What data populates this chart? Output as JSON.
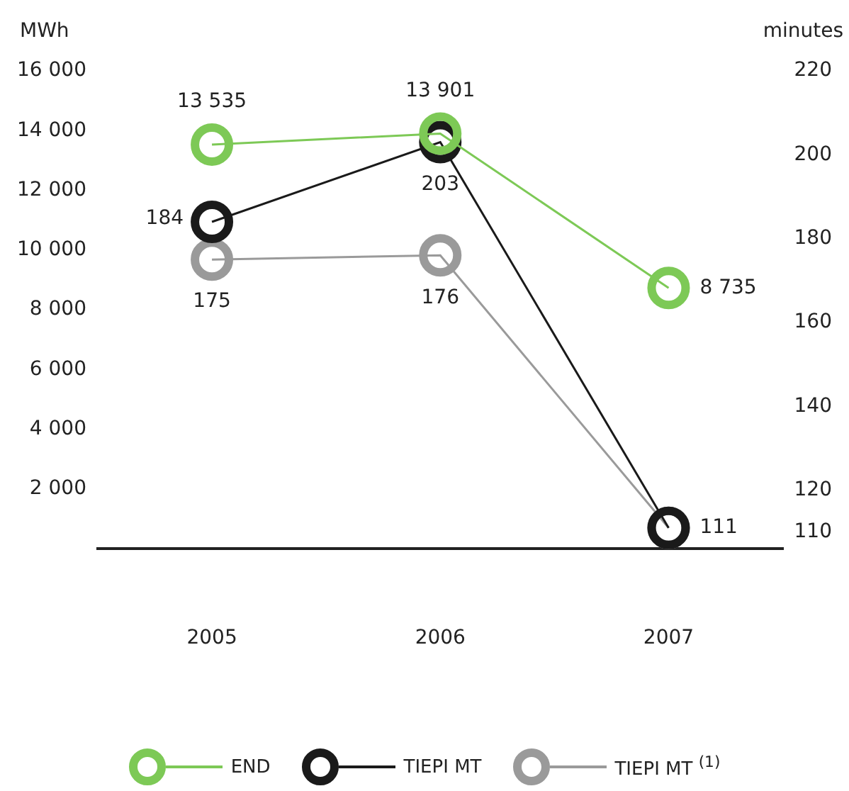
{
  "chart_data": {
    "type": "line",
    "ylabel": "MWh",
    "y2label": "minutes",
    "categories": [
      "2005",
      "2006",
      "2007"
    ],
    "series": [
      {
        "name": "END",
        "color": "#7dc956",
        "values": [
          13535,
          13901,
          8735
        ],
        "value_labels": [
          "13 535",
          "13 901",
          "8 735"
        ]
      },
      {
        "name": "TIEPI MT",
        "color": "#1a1a1a",
        "axis": "y2",
        "values": [
          184,
          203,
          111
        ],
        "value_labels": [
          "184",
          "203",
          "111"
        ]
      },
      {
        "name": "TIEPI MT $^{(1)}$",
        "color": "#9a9a9a",
        "axis": "y2",
        "values": [
          175,
          176,
          111
        ],
        "value_labels": [
          "175",
          "176",
          null
        ]
      }
    ],
    "ylim": [
      0,
      16000
    ],
    "yticks": [
      {
        "value": 2000,
        "label": "2 000"
      },
      {
        "value": 4000,
        "label": "4 000"
      },
      {
        "value": 6000,
        "label": "6 000"
      },
      {
        "value": 8000,
        "label": "8 000"
      },
      {
        "value": 10000,
        "label": "10 000"
      },
      {
        "value": 12000,
        "label": "12 000"
      },
      {
        "value": 14000,
        "label": "14 000"
      },
      {
        "value": 16000,
        "label": "16 000"
      }
    ],
    "y2lim": [
      106,
      220
    ],
    "y2ticks": [
      110,
      120,
      140,
      160,
      180,
      200,
      220
    ],
    "grid": false,
    "legend": "bottom",
    "marker": "circle",
    "line_style": "solid"
  }
}
